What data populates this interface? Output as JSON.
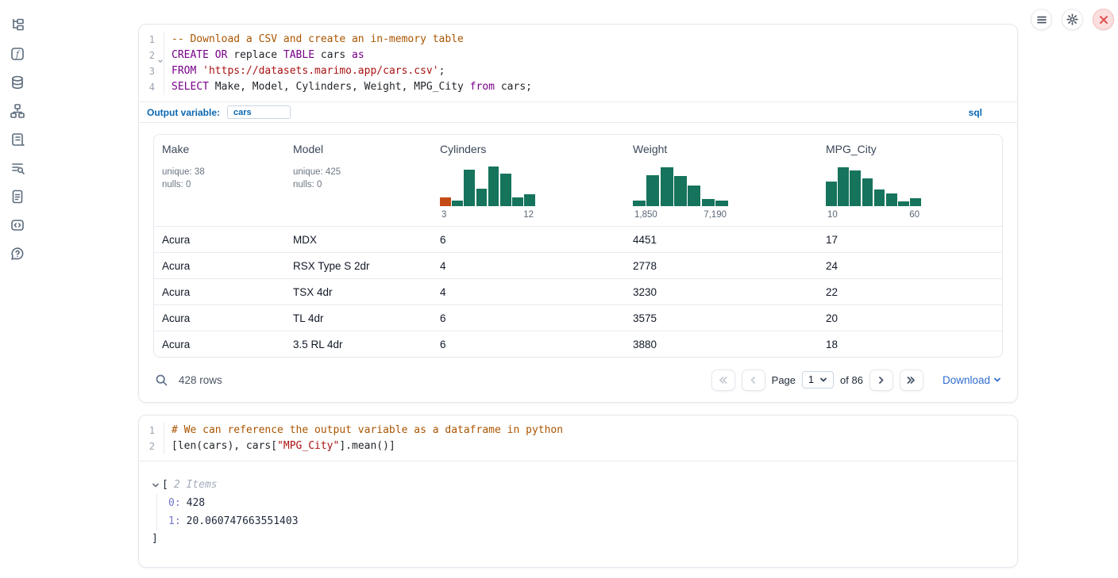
{
  "topbar": {
    "buttons": [
      {
        "name": "menu",
        "icon": "hamburger-icon"
      },
      {
        "name": "settings",
        "icon": "gear-icon"
      },
      {
        "name": "shutdown",
        "icon": "close-icon"
      }
    ]
  },
  "sidebar": {
    "icons": [
      "file-tree-icon",
      "function-square-icon",
      "database-icon",
      "dependency-graph-icon",
      "scroll-icon",
      "list-search-icon",
      "document-icon",
      "code-square-icon",
      "help-icon"
    ]
  },
  "sql_cell": {
    "lines": [
      {
        "n": "1",
        "fold": false,
        "tokens": [
          {
            "c": "com",
            "t": "-- Download a CSV and create an in-memory table"
          }
        ]
      },
      {
        "n": "2",
        "fold": true,
        "tokens": [
          {
            "c": "kw",
            "t": "CREATE"
          },
          {
            "c": "",
            "t": " "
          },
          {
            "c": "kw",
            "t": "OR"
          },
          {
            "c": "",
            "t": " replace "
          },
          {
            "c": "kw",
            "t": "TABLE"
          },
          {
            "c": "",
            "t": " cars "
          },
          {
            "c": "kw",
            "t": "as"
          }
        ]
      },
      {
        "n": "3",
        "fold": false,
        "tokens": [
          {
            "c": "kw",
            "t": "FROM"
          },
          {
            "c": "",
            "t": " "
          },
          {
            "c": "str",
            "t": "'https://datasets.marimo.app/cars.csv'"
          },
          {
            "c": "",
            "t": ";"
          }
        ]
      },
      {
        "n": "4",
        "fold": false,
        "tokens": [
          {
            "c": "kw",
            "t": "SELECT"
          },
          {
            "c": "",
            "t": " Make, Model, Cylinders, Weight, MPG_City "
          },
          {
            "c": "kw",
            "t": "from"
          },
          {
            "c": "",
            "t": " cars;"
          }
        ]
      }
    ],
    "output_variable_label": "Output variable:",
    "output_variable_value": "cars",
    "language_badge": "sql"
  },
  "table": {
    "columns": [
      {
        "name": "Make",
        "stat_lines": [
          "unique: 38",
          "nulls: 0"
        ]
      },
      {
        "name": "Model",
        "stat_lines": [
          "unique: 425",
          "nulls: 0"
        ]
      },
      {
        "name": "Cylinders",
        "histogram": {
          "heights": [
            0.22,
            0.13,
            0.88,
            0.42,
            0.97,
            0.78,
            0.22,
            0.28
          ],
          "first_bar_color": "#c44b16",
          "min_label": "3",
          "max_label": "12"
        }
      },
      {
        "name": "Weight",
        "histogram": {
          "heights": [
            0.13,
            0.75,
            0.95,
            0.73,
            0.5,
            0.17,
            0.13
          ],
          "min_label": "1,850",
          "max_label": "7,190"
        }
      },
      {
        "name": "MPG_City",
        "histogram": {
          "heights": [
            0.6,
            0.95,
            0.87,
            0.67,
            0.4,
            0.3,
            0.12,
            0.2
          ],
          "min_label": "10",
          "max_label": "60"
        }
      }
    ],
    "rows": [
      [
        "Acura",
        "MDX",
        "6",
        "4451",
        "17"
      ],
      [
        "Acura",
        "RSX Type S 2dr",
        "4",
        "2778",
        "24"
      ],
      [
        "Acura",
        "TSX 4dr",
        "4",
        "3230",
        "22"
      ],
      [
        "Acura",
        "TL 4dr",
        "6",
        "3575",
        "20"
      ],
      [
        "Acura",
        "3.5 RL 4dr",
        "6",
        "3880",
        "18"
      ]
    ],
    "footer": {
      "row_count": "428 rows",
      "page_label": "Page",
      "page_value": "1",
      "of_label": "of 86",
      "download_label": "Download"
    }
  },
  "python_cell": {
    "lines": [
      {
        "n": "1",
        "fold": false,
        "tokens": [
          {
            "c": "com",
            "t": "# We can reference the output variable as a dataframe in python"
          }
        ]
      },
      {
        "n": "2",
        "fold": false,
        "tokens": [
          {
            "c": "",
            "t": "[len(cars), cars["
          },
          {
            "c": "str",
            "t": "\"MPG_City\""
          },
          {
            "c": "",
            "t": "].mean()]"
          }
        ]
      }
    ]
  },
  "output_tree": {
    "open_bracket": "[",
    "items_label": "2 Items",
    "entries": [
      {
        "key": "0:",
        "value": "428"
      },
      {
        "key": "1:",
        "value": "20.060747663551403"
      }
    ],
    "close_bracket": "]"
  },
  "colors": {
    "histogram_green": "#16735c",
    "histogram_orange": "#c44b16",
    "accent_blue": "#0b68b1",
    "link_blue": "#2f6bce",
    "keyword_purple": "#770088",
    "string_red": "#aa1111",
    "comment_brown": "#aa5500"
  },
  "chart_data": [
    {
      "type": "bar",
      "title": "Cylinders histogram",
      "xlabel": "Cylinders",
      "x_min": 3,
      "x_max": 12,
      "values": [
        0.22,
        0.13,
        0.88,
        0.42,
        0.97,
        0.78,
        0.22,
        0.28
      ],
      "note": "relative bar heights; first bar highlighted orange"
    },
    {
      "type": "bar",
      "title": "Weight histogram",
      "xlabel": "Weight",
      "x_min": 1850,
      "x_max": 7190,
      "values": [
        0.13,
        0.75,
        0.95,
        0.73,
        0.5,
        0.17,
        0.13
      ],
      "note": "relative bar heights"
    },
    {
      "type": "bar",
      "title": "MPG_City histogram",
      "xlabel": "MPG_City",
      "x_min": 10,
      "x_max": 60,
      "values": [
        0.6,
        0.95,
        0.87,
        0.67,
        0.4,
        0.3,
        0.12,
        0.2
      ],
      "note": "relative bar heights"
    }
  ]
}
